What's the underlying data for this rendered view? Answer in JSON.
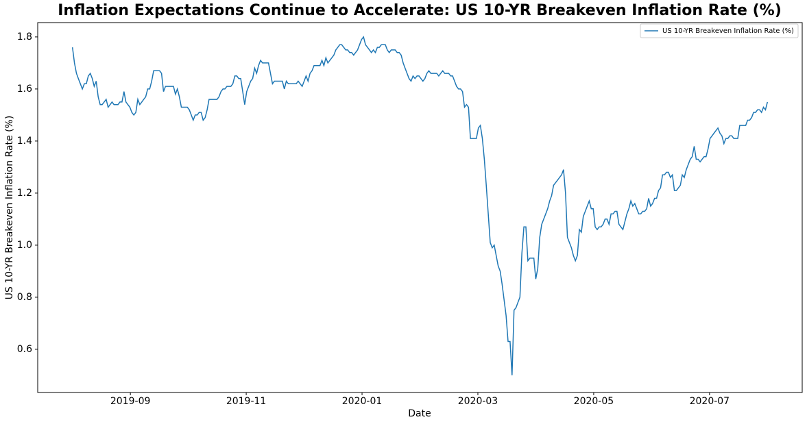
{
  "chart_data": {
    "type": "line",
    "title": "Inflation Expectations Continue to Accelerate: US 10-YR Breakeven Inflation Rate (%)",
    "x_label": "Date",
    "y_label": "US 10-YR Breakeven Inflation Rate (%)",
    "xlim": [
      "2019-08",
      "2020-08"
    ],
    "xticks": [
      "2019-09",
      "2019-11",
      "2020-01",
      "2020-03",
      "2020-05",
      "2020-07"
    ],
    "ylim": [
      0.434,
      1.855
    ],
    "yticks": [
      0.6,
      0.8,
      {
        "value": 1,
        "label": "1.0"
      },
      1.2,
      1.4,
      1.6,
      1.8
    ],
    "legend": "upper right",
    "series": [
      {
        "name": "US 10-YR Breakeven Inflation Rate (%)",
        "color": "#1f77b4",
        "values": [
          1.76,
          1.7,
          1.66,
          1.64,
          1.62,
          1.6,
          1.62,
          1.62,
          1.65,
          1.66,
          1.64,
          1.61,
          1.63,
          1.57,
          1.54,
          1.54,
          1.55,
          1.56,
          1.53,
          1.54,
          1.55,
          1.54,
          1.54,
          1.54,
          1.55,
          1.55,
          1.59,
          1.55,
          1.54,
          1.53,
          1.51,
          1.5,
          1.51,
          1.56,
          1.54,
          1.55,
          1.56,
          1.57,
          1.6,
          1.6,
          1.63,
          1.67,
          1.67,
          1.67,
          1.67,
          1.66,
          1.59,
          1.61,
          1.61,
          1.61,
          1.61,
          1.61,
          1.58,
          1.6,
          1.57,
          1.53,
          1.53,
          1.53,
          1.53,
          1.52,
          1.5,
          1.48,
          1.5,
          1.5,
          1.51,
          1.51,
          1.48,
          1.49,
          1.52,
          1.56,
          1.56,
          1.56,
          1.56,
          1.56,
          1.57,
          1.59,
          1.6,
          1.6,
          1.61,
          1.61,
          1.61,
          1.62,
          1.65,
          1.65,
          1.64,
          1.64,
          1.59,
          1.54,
          1.59,
          1.61,
          1.63,
          1.64,
          1.68,
          1.66,
          1.69,
          1.71,
          1.7,
          1.7,
          1.7,
          1.7,
          1.66,
          1.62,
          1.63,
          1.63,
          1.63,
          1.63,
          1.63,
          1.6,
          1.63,
          1.62,
          1.62,
          1.62,
          1.62,
          1.62,
          1.63,
          1.62,
          1.61,
          1.63,
          1.65,
          1.63,
          1.66,
          1.67,
          1.69,
          1.69,
          1.69,
          1.69,
          1.71,
          1.69,
          1.72,
          1.7,
          1.71,
          1.72,
          1.73,
          1.75,
          1.76,
          1.77,
          1.77,
          1.76,
          1.75,
          1.75,
          1.74,
          1.74,
          1.73,
          1.74,
          1.75,
          1.77,
          1.79,
          1.8,
          1.77,
          1.76,
          1.75,
          1.74,
          1.75,
          1.74,
          1.76,
          1.76,
          1.77,
          1.77,
          1.77,
          1.75,
          1.74,
          1.75,
          1.75,
          1.75,
          1.74,
          1.74,
          1.73,
          1.7,
          1.68,
          1.66,
          1.64,
          1.63,
          1.65,
          1.64,
          1.65,
          1.65,
          1.64,
          1.63,
          1.64,
          1.66,
          1.67,
          1.66,
          1.66,
          1.66,
          1.66,
          1.65,
          1.66,
          1.67,
          1.66,
          1.66,
          1.66,
          1.65,
          1.65,
          1.63,
          1.61,
          1.6,
          1.6,
          1.59,
          1.53,
          1.54,
          1.53,
          1.41,
          1.41,
          1.41,
          1.41,
          1.45,
          1.46,
          1.41,
          1.33,
          1.23,
          1.12,
          1.01,
          0.99,
          1.0,
          0.96,
          0.92,
          0.9,
          0.85,
          0.79,
          0.73,
          0.63,
          0.63,
          0.5,
          0.75,
          0.76,
          0.78,
          0.8,
          0.97,
          1.07,
          1.07,
          0.94,
          0.95,
          0.95,
          0.95,
          0.87,
          0.91,
          1.03,
          1.08,
          1.1,
          1.12,
          1.14,
          1.17,
          1.19,
          1.23,
          1.24,
          1.25,
          1.26,
          1.27,
          1.29,
          1.2,
          1.03,
          1.01,
          0.99,
          0.96,
          0.94,
          0.96,
          1.06,
          1.05,
          1.11,
          1.13,
          1.15,
          1.17,
          1.14,
          1.14,
          1.07,
          1.06,
          1.07,
          1.07,
          1.08,
          1.1,
          1.1,
          1.08,
          1.12,
          1.12,
          1.13,
          1.13,
          1.08,
          1.07,
          1.06,
          1.09,
          1.12,
          1.14,
          1.17,
          1.15,
          1.16,
          1.14,
          1.12,
          1.12,
          1.13,
          1.13,
          1.14,
          1.18,
          1.15,
          1.16,
          1.18,
          1.18,
          1.21,
          1.22,
          1.27,
          1.27,
          1.28,
          1.28,
          1.26,
          1.27,
          1.21,
          1.21,
          1.22,
          1.23,
          1.27,
          1.26,
          1.29,
          1.31,
          1.33,
          1.34,
          1.38,
          1.33,
          1.33,
          1.32,
          1.33,
          1.34,
          1.34,
          1.37,
          1.41,
          1.42,
          1.43,
          1.44,
          1.45,
          1.43,
          1.42,
          1.39,
          1.41,
          1.41,
          1.42,
          1.42,
          1.41,
          1.41,
          1.41,
          1.46,
          1.46,
          1.46,
          1.46,
          1.48,
          1.48,
          1.49,
          1.51,
          1.51,
          1.52,
          1.52,
          1.51,
          1.53,
          1.52,
          1.55
        ]
      }
    ]
  }
}
